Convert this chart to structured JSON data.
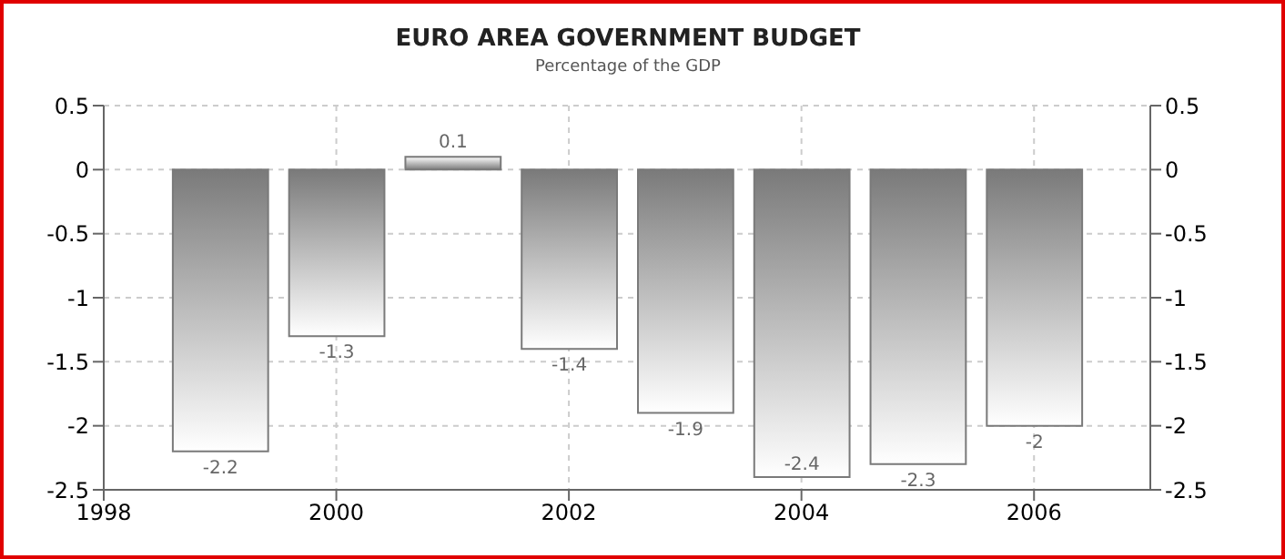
{
  "chart_data": {
    "type": "bar",
    "title": "EURO AREA GOVERNMENT BUDGET",
    "subtitle": "Percentage of the GDP",
    "x": [
      1999,
      2000,
      2001,
      2002,
      2003,
      2004,
      2005,
      2006
    ],
    "values": [
      -2.2,
      -1.3,
      0.1,
      -1.4,
      -1.9,
      -2.4,
      -2.3,
      -2
    ],
    "color": "#7a7a7a",
    "xlim": [
      1998,
      2007
    ],
    "xticks": [
      1998,
      2000,
      2002,
      2004,
      2006
    ],
    "ylim": [
      -2.5,
      0.5
    ],
    "yticks": [
      -2.5,
      -2,
      -1.5,
      -1,
      -0.5,
      0,
      0.5
    ],
    "y2lim": [
      -2.5,
      0.5
    ],
    "y2ticks": [
      -2.5,
      -2,
      -1.5,
      -1,
      -0.5,
      0,
      0.5
    ],
    "grid": true,
    "data_labels": true
  }
}
